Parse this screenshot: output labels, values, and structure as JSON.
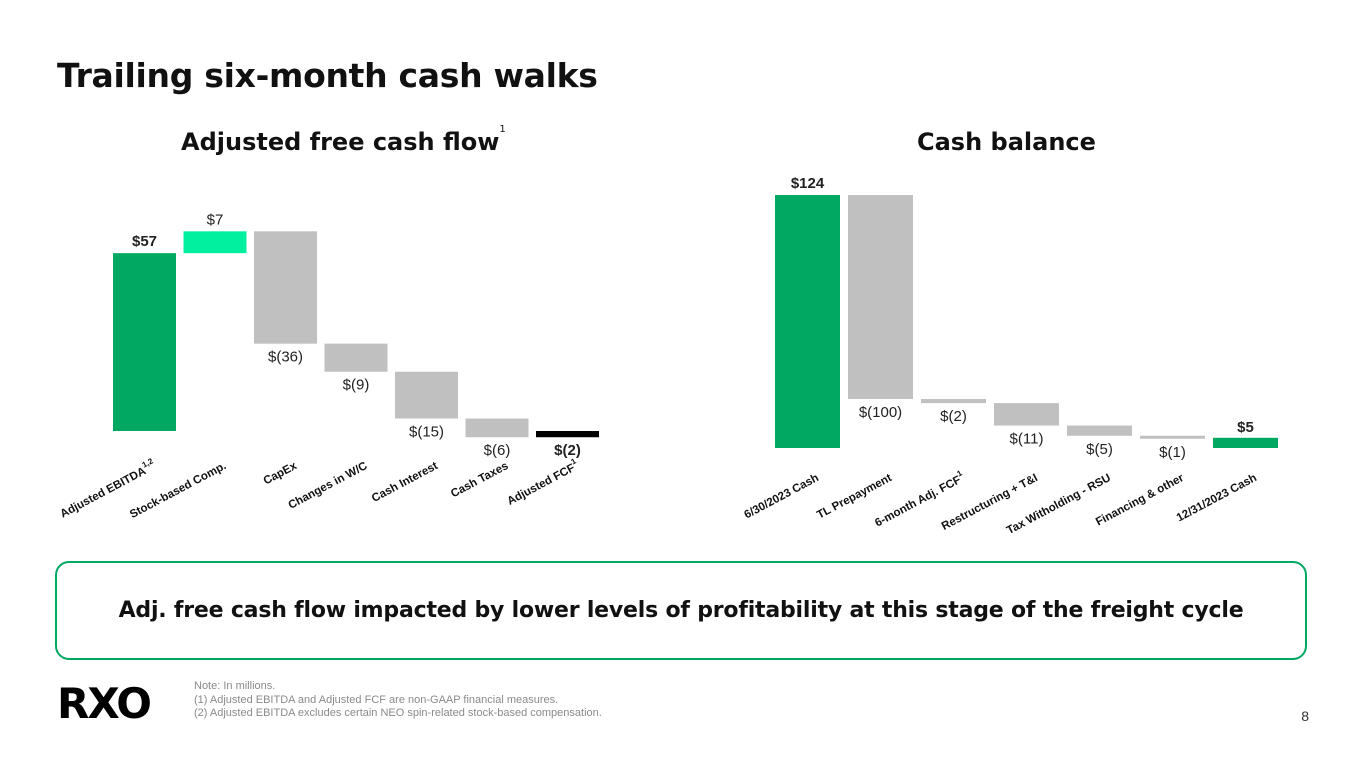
{
  "page": {
    "title": "Trailing six-month cash walks",
    "callout": "Adj. free cash flow impacted by lower levels of profitability at this stage of the freight cycle",
    "logo": "RXO",
    "page_number": "8",
    "notes": [
      "Note: In millions.",
      "(1)  Adjusted EBITDA and Adjusted FCF are non-GAAP financial measures.",
      "(2) Adjusted EBITDA excludes certain NEO spin-related stock-based compensation."
    ]
  },
  "colors": {
    "total_green": "#00a862",
    "bright_green": "#00f0a0",
    "gray": "#c0c0c0",
    "black": "#000000",
    "border_green": "#00a862"
  },
  "chart_data": [
    {
      "type": "waterfall",
      "title": "Adjusted free cash flow",
      "title_superscript": "1",
      "categories": [
        "Adjusted EBITDA",
        "Stock-based Comp.",
        "CapEx",
        "Changes in W/C",
        "Cash Interest",
        "Cash Taxes",
        "Adjusted FCF"
      ],
      "category_superscripts": [
        "1,2",
        "",
        "",
        "",
        "",
        "",
        "1"
      ],
      "values": [
        57,
        7,
        -36,
        -9,
        -15,
        -6,
        -2
      ],
      "labels": [
        "$57",
        "$7",
        "$(36)",
        "$(9)",
        "$(15)",
        "$(6)",
        "$(2)"
      ],
      "bar_kinds": [
        "total",
        "increase",
        "decrease",
        "decrease",
        "decrease",
        "decrease",
        "total"
      ],
      "bar_colors": [
        "#00a862",
        "#00f0a0",
        "#c0c0c0",
        "#c0c0c0",
        "#c0c0c0",
        "#c0c0c0",
        "#000000"
      ],
      "bold_labels": [
        true,
        false,
        false,
        false,
        false,
        false,
        true
      ]
    },
    {
      "type": "waterfall",
      "title": "Cash balance",
      "categories": [
        "6/30/2023 Cash",
        "TL Prepayment",
        "6-month Adj. FCF",
        "Restructuring + T&I",
        "Tax Witholding - RSU",
        "Financing & other",
        "12/31/2023 Cash"
      ],
      "category_superscripts": [
        "",
        "",
        "1",
        "",
        "",
        "",
        ""
      ],
      "values": [
        124,
        -100,
        -2,
        -11,
        -5,
        -1,
        5
      ],
      "labels": [
        "$124",
        "$(100)",
        "$(2)",
        "$(11)",
        "$(5)",
        "$(1)",
        "$5"
      ],
      "bar_kinds": [
        "total",
        "decrease",
        "decrease",
        "decrease",
        "decrease",
        "decrease",
        "total"
      ],
      "bar_colors": [
        "#00a862",
        "#c0c0c0",
        "#c0c0c0",
        "#c0c0c0",
        "#c0c0c0",
        "#c0c0c0",
        "#00a862"
      ],
      "bold_labels": [
        true,
        false,
        false,
        false,
        false,
        false,
        true
      ]
    }
  ]
}
